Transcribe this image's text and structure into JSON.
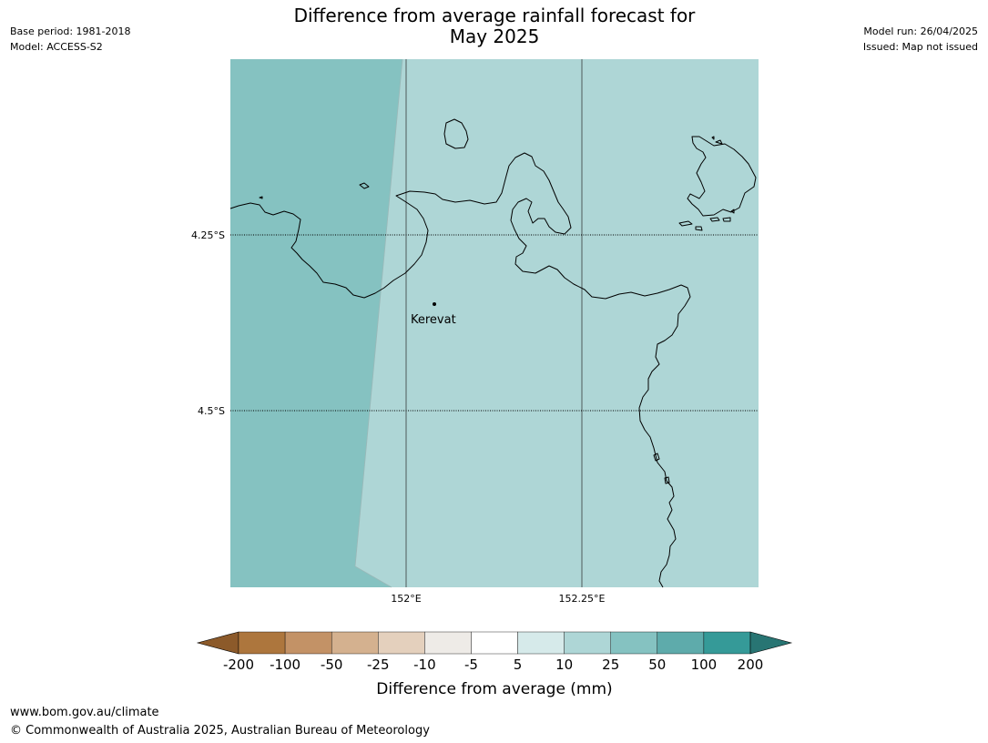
{
  "header": {
    "title_line1": "Difference from average rainfall forecast for",
    "title_line2": "May 2025",
    "base_period": "Base period: 1981-2018",
    "model": "Model: ACCESS-S2",
    "model_run": "Model run: 26/04/2025",
    "issued": "Issued: Map not issued"
  },
  "map": {
    "lat_labels": [
      "4.25°S",
      "4.5°S"
    ],
    "lon_labels": [
      "152°E",
      "152.25°E"
    ],
    "place": "Kerevat",
    "colors": {
      "band_25_50": "#85c2c1",
      "band_10_25": "#aed6d6",
      "coastline": "#000000",
      "meridian": "#4f5a5a"
    }
  },
  "legend": {
    "title": "Difference from average (mm)",
    "tick_labels": [
      "-200",
      "-100",
      "-50",
      "-25",
      "-10",
      "-5",
      "5",
      "10",
      "25",
      "50",
      "100",
      "200"
    ],
    "colors": [
      "#8c5a2a",
      "#ad763d",
      "#c39266",
      "#d4b18f",
      "#e4d0bd",
      "#eeebe7",
      "#ffffff",
      "#d6eaea",
      "#aed6d6",
      "#85c2c1",
      "#5eabab",
      "#359a98",
      "#287573"
    ]
  },
  "footer": {
    "url": "www.bom.gov.au/climate",
    "copyright": "© Commonwealth of Australia 2025, Australian Bureau of Meteorology"
  }
}
